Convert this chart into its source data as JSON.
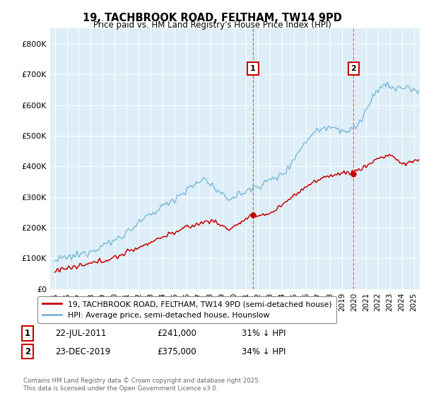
{
  "title_line1": "19, TACHBROOK ROAD, FELTHAM, TW14 9PD",
  "title_line2": "Price paid vs. HM Land Registry's House Price Index (HPI)",
  "ylim": [
    0,
    850000
  ],
  "yticks": [
    0,
    100000,
    200000,
    300000,
    400000,
    500000,
    600000,
    700000,
    800000
  ],
  "ytick_labels": [
    "£0",
    "£100K",
    "£200K",
    "£300K",
    "£400K",
    "£500K",
    "£600K",
    "£700K",
    "£800K"
  ],
  "hpi_color": "#7ab8d9",
  "price_color": "#cc0000",
  "bg_color": "#ddeef8",
  "sale1_year": 2011.56,
  "sale1_price": 241000,
  "sale2_year": 2019.97,
  "sale2_price": 375000,
  "legend_label1": "19, TACHBROOK ROAD, FELTHAM, TW14 9PD (semi-detached house)",
  "legend_label2": "HPI: Average price, semi-detached house, Hounslow",
  "footnote": "Contains HM Land Registry data © Crown copyright and database right 2025.\nThis data is licensed under the Open Government Licence v3.0.",
  "table_rows": [
    [
      "1",
      "22-JUL-2011",
      "£241,000",
      "31% ↓ HPI"
    ],
    [
      "2",
      "23-DEC-2019",
      "£375,000",
      "34% ↓ HPI"
    ]
  ],
  "xmin": 1995.0,
  "xmax": 2025.3
}
